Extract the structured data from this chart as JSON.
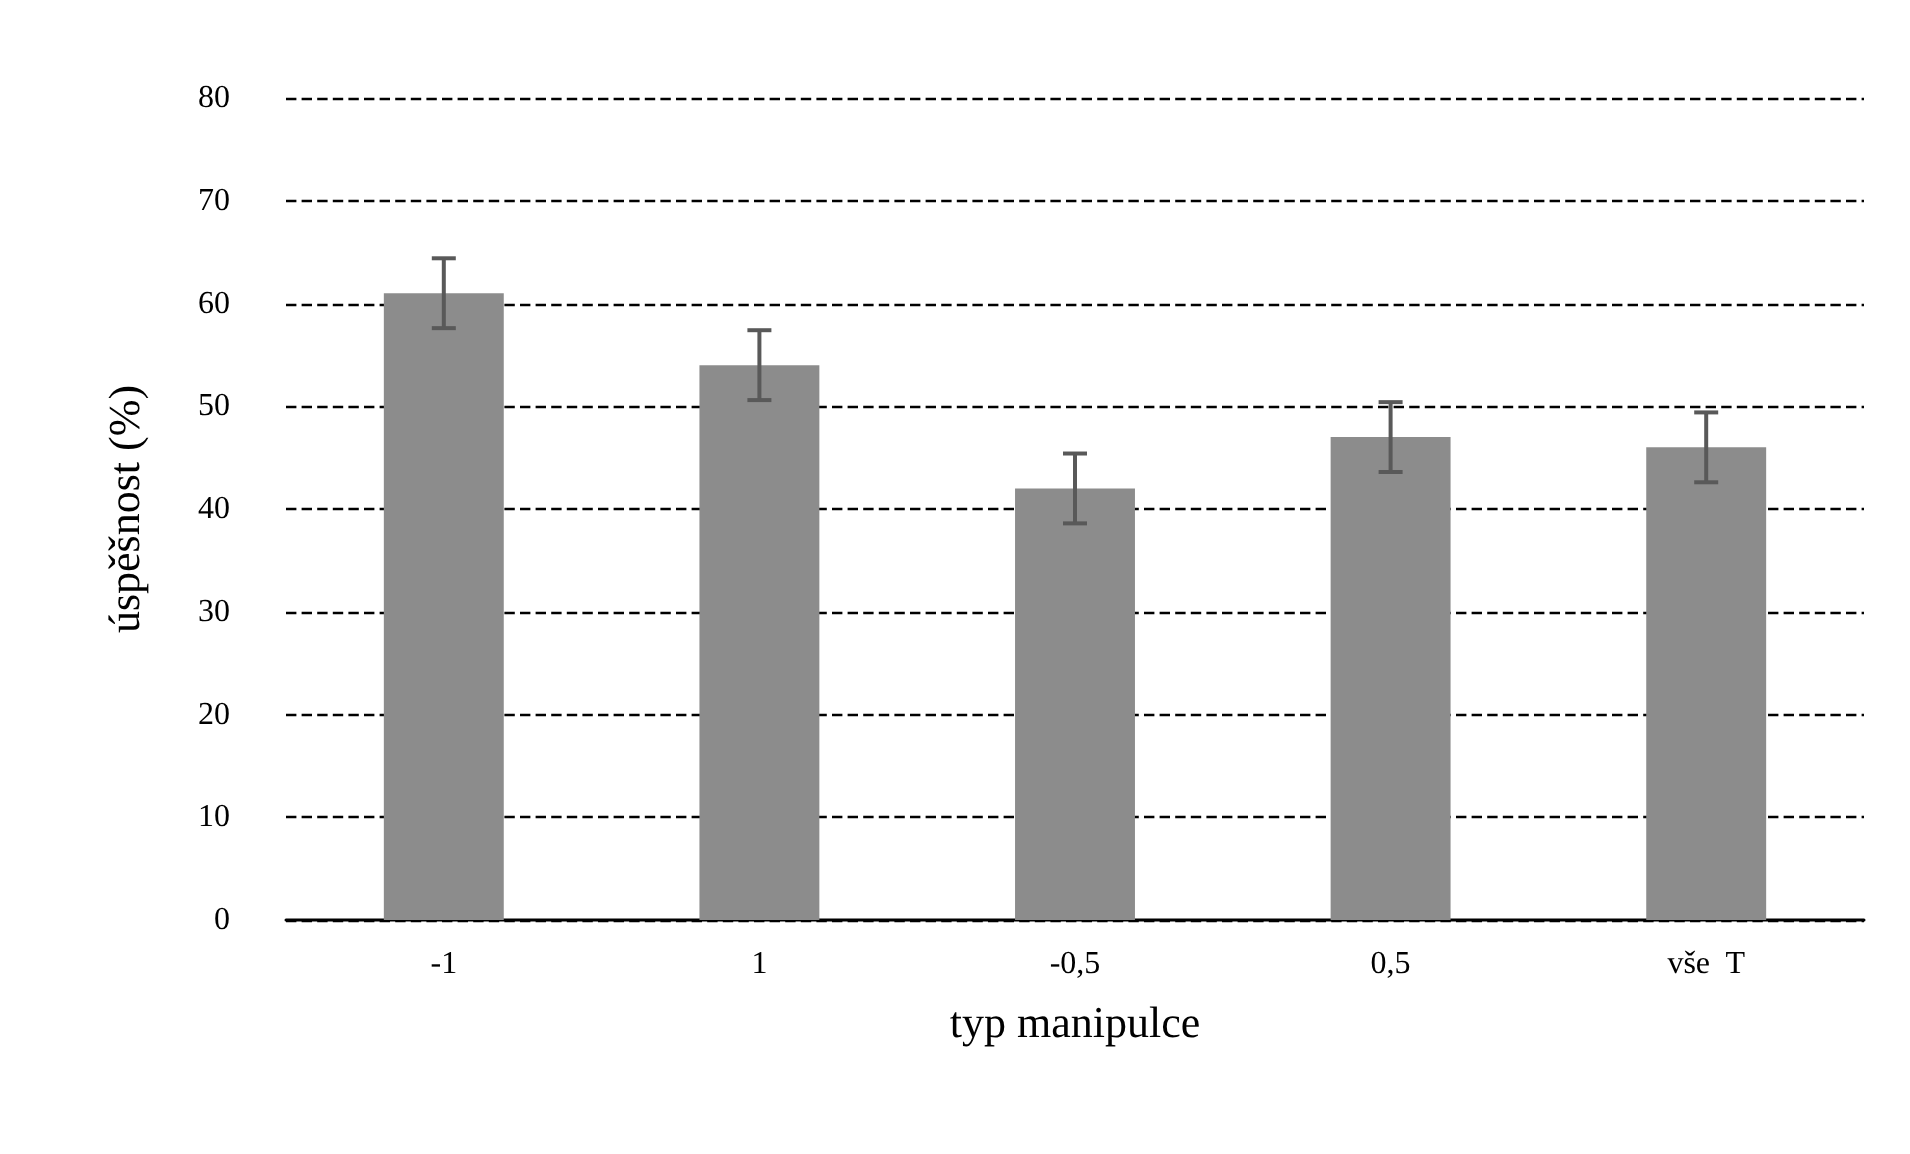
{
  "chart_data": {
    "type": "bar",
    "xlabel": "typ manipulce",
    "ylabel": "úspěšnost (%)",
    "categories": [
      "-1",
      "1",
      "-0,5",
      "0,5",
      "vše  T"
    ],
    "values": [
      61,
      54,
      42,
      47,
      46
    ],
    "errors": [
      3.4,
      3.4,
      3.4,
      3.4,
      3.4
    ],
    "color": "#8c8c8c",
    "ylim": [
      0,
      80
    ],
    "yticks": [
      0,
      10,
      20,
      30,
      40,
      50,
      60,
      70,
      80
    ],
    "grid": "y",
    "line_style": "dashed"
  }
}
